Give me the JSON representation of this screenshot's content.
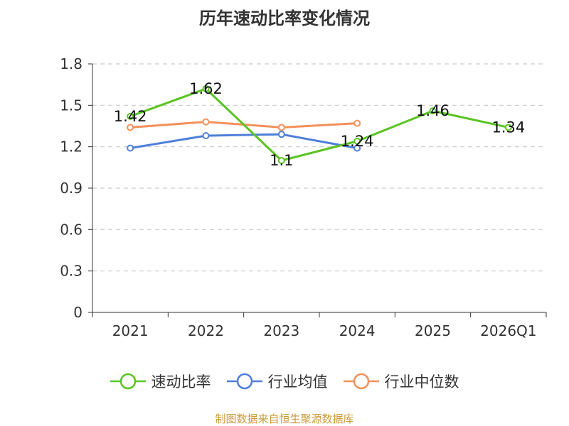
{
  "chart_data": {
    "type": "line",
    "title": "历年速动比率变化情况",
    "categories": [
      "2021",
      "2022",
      "2023",
      "2024",
      "2025",
      "2026Q1"
    ],
    "ylim": [
      0,
      1.8
    ],
    "yticks": [
      "0",
      "0.3",
      "0.6",
      "0.9",
      "1.2",
      "1.5",
      "1.8"
    ],
    "ytick_values": [
      0,
      0.3,
      0.6,
      0.9,
      1.2,
      1.5,
      1.8
    ],
    "grid": true,
    "legend_position": "bottom",
    "series": [
      {
        "name": "速动比率",
        "color": "#5ac422",
        "values": [
          1.42,
          1.62,
          1.1,
          1.24,
          1.46,
          1.34
        ],
        "labels": [
          "1.42",
          "1.62",
          "1.1",
          "1.24",
          "1.46",
          "1.34"
        ]
      },
      {
        "name": "行业均值",
        "color": "#4f7fd8",
        "values": [
          1.19,
          1.28,
          1.29,
          1.19,
          null,
          null
        ]
      },
      {
        "name": "行业中位数",
        "color": "#f4905b",
        "values": [
          1.34,
          1.38,
          1.34,
          1.37,
          null,
          null
        ]
      }
    ]
  },
  "footer": {
    "source_text": "制图数据来自恒生聚源数据库"
  }
}
